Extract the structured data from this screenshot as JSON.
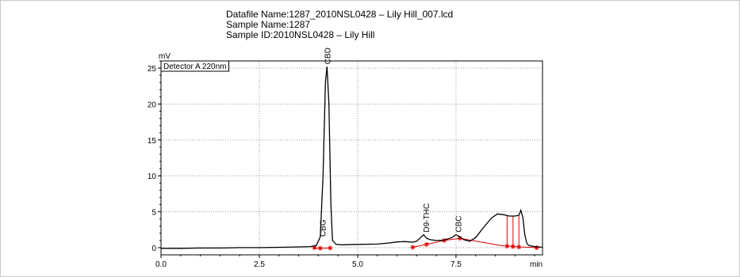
{
  "header": {
    "datafile": "Datafile Name:1287_2010NSL0428 – Lily Hill_007.lcd",
    "sample_name": "Sample Name:1287",
    "sample_id": "Sample ID:2010NSL0428 – Lily Hill"
  },
  "colors": {
    "trace": "#000000",
    "baseline": "#e00000",
    "grid": "#9a9a9a",
    "frame": "#c8c8c8"
  },
  "chart_data": {
    "type": "line",
    "detector_label": "Detector A 220nm",
    "ylabel": "mV",
    "xlabel": "min",
    "xlim": [
      0,
      9.7
    ],
    "ylim": [
      -1,
      26
    ],
    "x_ticks": [
      0.0,
      2.5,
      5.0,
      7.5
    ],
    "x_tick_labels": [
      "0.0",
      "2.5",
      "5.0",
      "7.5"
    ],
    "y_ticks": [
      0,
      5,
      10,
      15,
      20,
      25
    ],
    "y_tick_labels": [
      "0",
      "5",
      "10",
      "15",
      "20",
      "25"
    ],
    "grid": true,
    "series": [
      {
        "x": [
          0.0,
          0.5,
          1.0,
          1.5,
          2.0,
          2.5,
          3.0,
          3.5,
          3.8,
          3.95,
          4.05,
          4.12,
          4.18,
          4.22,
          4.27,
          4.32,
          4.36,
          4.45,
          4.6,
          5.0,
          5.5,
          5.8,
          6.0,
          6.2,
          6.4,
          6.5,
          6.6,
          6.68,
          6.75,
          6.85,
          7.0,
          7.2,
          7.4,
          7.5,
          7.6,
          7.7,
          7.85,
          8.0,
          8.2,
          8.4,
          8.55,
          8.7,
          8.85,
          9.0,
          9.1,
          9.15,
          9.2,
          9.25,
          9.3,
          9.35,
          9.5,
          9.7
        ],
        "y": [
          -0.1,
          -0.1,
          -0.05,
          -0.05,
          0.0,
          0.0,
          0.05,
          0.1,
          0.15,
          0.3,
          1.5,
          10.0,
          23.0,
          25.2,
          20.0,
          6.0,
          1.0,
          0.45,
          0.4,
          0.45,
          0.5,
          0.65,
          0.8,
          0.85,
          0.75,
          0.9,
          1.4,
          1.8,
          1.3,
          1.1,
          1.0,
          1.05,
          1.4,
          1.8,
          1.5,
          1.1,
          0.9,
          1.4,
          2.8,
          4.1,
          4.7,
          4.6,
          4.4,
          4.4,
          4.5,
          5.2,
          4.2,
          1.8,
          0.6,
          0.3,
          0.15,
          0.05
        ]
      }
    ],
    "baseline_segments": [
      {
        "x": [
          3.92,
          4.3
        ],
        "y": [
          -0.1,
          -0.05
        ]
      },
      {
        "x": [
          6.4,
          6.75,
          7.2,
          7.6,
          8.7,
          8.85,
          9.0,
          9.1,
          9.55
        ],
        "y": [
          0.05,
          0.45,
          1.0,
          1.3,
          0.25,
          0.2,
          0.15,
          0.1,
          0.0
        ]
      }
    ],
    "baseline_markers": [
      3.9,
      4.05,
      4.3,
      6.4,
      6.75,
      7.2,
      7.6,
      8.8,
      8.95,
      9.1,
      9.55
    ],
    "peak_drops": [
      8.8,
      8.95,
      9.1
    ],
    "peaks": [
      {
        "name": "CBG",
        "x": 4.1,
        "y": 1.2
      },
      {
        "name": "CBD",
        "x": 4.22,
        "y": 25.2
      },
      {
        "name": "D9-THC",
        "x": 6.74,
        "y": 1.8
      },
      {
        "name": "CBC",
        "x": 7.55,
        "y": 1.8
      }
    ]
  }
}
